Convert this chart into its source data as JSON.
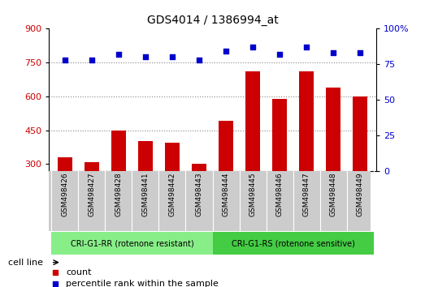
{
  "title": "GDS4014 / 1386994_at",
  "categories": [
    "GSM498426",
    "GSM498427",
    "GSM498428",
    "GSM498441",
    "GSM498442",
    "GSM498443",
    "GSM498444",
    "GSM498445",
    "GSM498446",
    "GSM498447",
    "GSM498448",
    "GSM498449"
  ],
  "bar_values": [
    330,
    310,
    450,
    400,
    395,
    300,
    490,
    710,
    590,
    710,
    640,
    600
  ],
  "percentile_values": [
    78,
    78,
    82,
    80,
    80,
    78,
    84,
    87,
    82,
    87,
    83,
    83
  ],
  "bar_color": "#cc0000",
  "dot_color": "#0000cc",
  "ylim_left": [
    270,
    900
  ],
  "ylim_right": [
    0,
    100
  ],
  "yticks_left": [
    300,
    450,
    600,
    750,
    900
  ],
  "yticks_right": [
    0,
    25,
    50,
    75,
    100
  ],
  "yticklabel_right": [
    "0",
    "25",
    "50",
    "75",
    "100%"
  ],
  "group1_label": "CRI-G1-RR (rotenone resistant)",
  "group2_label": "CRI-G1-RS (rotenone sensitive)",
  "group1_color": "#88ee88",
  "group2_color": "#44cc44",
  "group_bg_color": "#cccccc",
  "cell_line_label": "cell line",
  "legend_count_label": "count",
  "legend_pct_label": "percentile rank within the sample",
  "dotted_line_color": "#888888",
  "n_group1": 6,
  "n_group2": 6,
  "bar_bottom": 270
}
